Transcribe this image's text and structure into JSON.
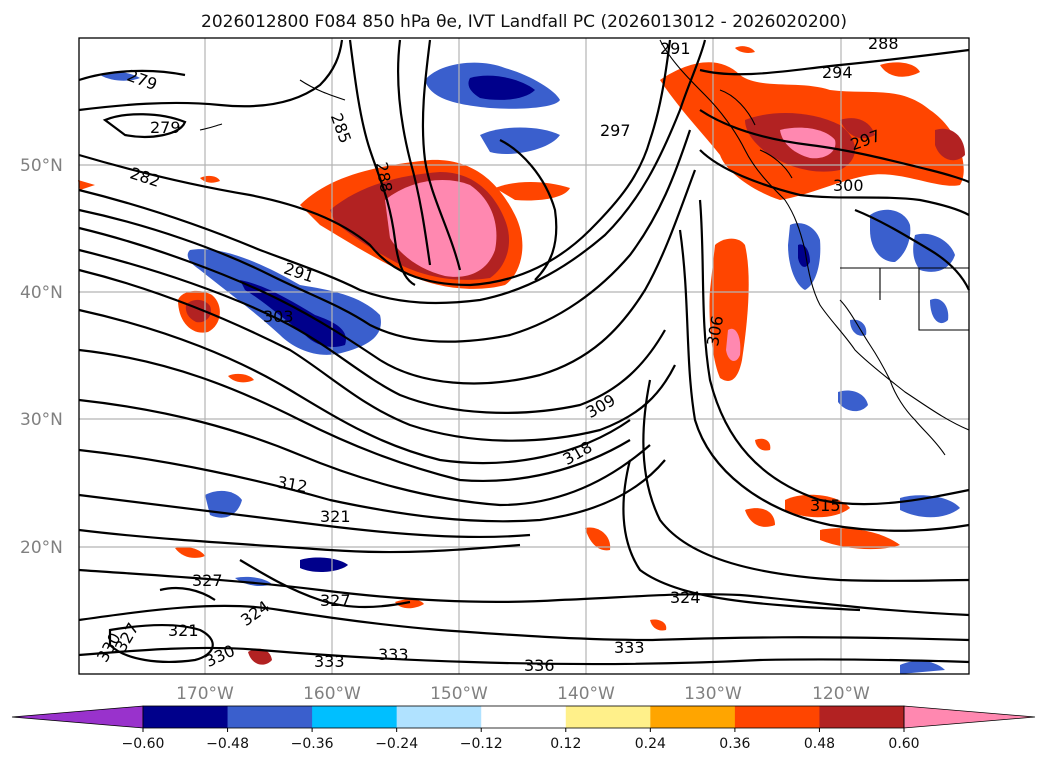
{
  "map": {
    "title": "2026012800 F084 850 hPa θe, IVT Landfall PC (2026013012 - 2026020200)",
    "lat_labels": [
      "50°N",
      "40°N",
      "30°N",
      "20°N"
    ],
    "lon_labels": [
      "170°W",
      "160°W",
      "150°W",
      "140°W",
      "130°W",
      "120°W"
    ],
    "contour_labels": [
      "279",
      "279",
      "285",
      "288",
      "282",
      "291",
      "303",
      "297",
      "294",
      "288",
      "291",
      "297",
      "300",
      "306",
      "309",
      "318",
      "312",
      "321",
      "315",
      "327",
      "327",
      "324",
      "321",
      "330",
      "327",
      "330",
      "333",
      "333",
      "336",
      "333",
      "324"
    ],
    "colorbar": {
      "ticks": [
        "−0.60",
        "−0.48",
        "−0.36",
        "−0.24",
        "−0.12",
        "0.12",
        "0.24",
        "0.36",
        "0.48",
        "0.60"
      ],
      "colors": [
        "#9932cc",
        "#00008b",
        "#3a5fcd",
        "#00bfff",
        "#b0e2ff",
        "#ffffff",
        "#fff08a",
        "#ffa500",
        "#ff4500",
        "#b22222",
        "#ff88b0"
      ]
    }
  }
}
